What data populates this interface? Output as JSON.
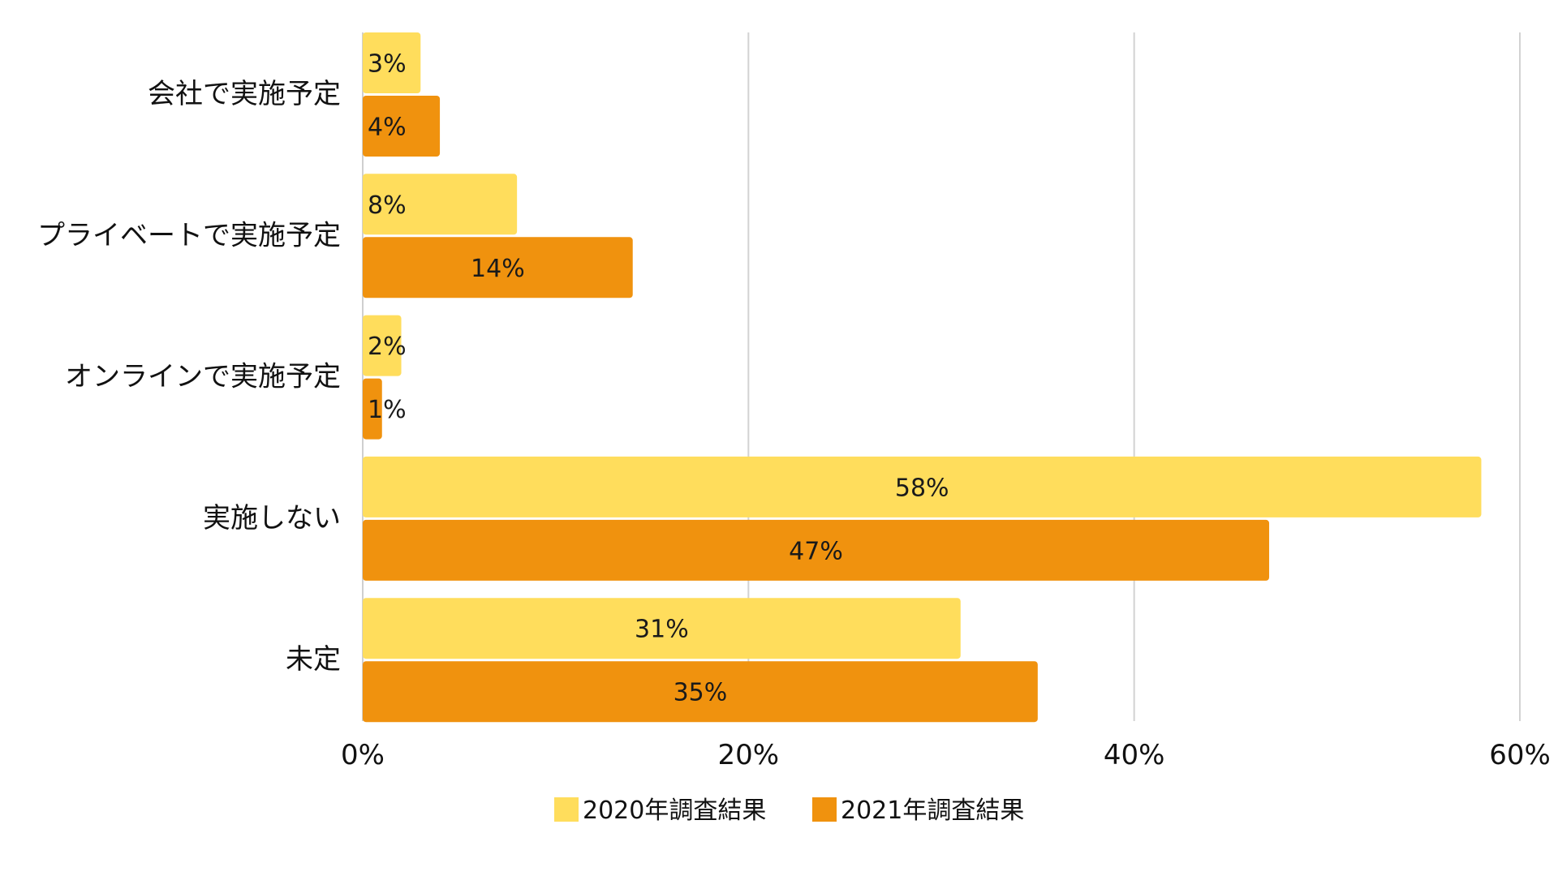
{
  "chart_data": {
    "type": "bar",
    "orientation": "horizontal",
    "categories": [
      "会社で実施予定",
      "プライベートで実施予定",
      "オンラインで実施予定",
      "実施しない",
      "未定"
    ],
    "series": [
      {
        "name": "2020年調査結果",
        "color": "#FFDD5C",
        "values": [
          3,
          8,
          2,
          58,
          31
        ],
        "labels": [
          "3%",
          "8%",
          "2%",
          "58%",
          "31%"
        ]
      },
      {
        "name": "2021年調査結果",
        "color": "#F0920E",
        "values": [
          4,
          14,
          1,
          47,
          35
        ],
        "labels": [
          "4%",
          "14%",
          "1%",
          "47%",
          "35%"
        ]
      }
    ],
    "xlim": [
      0,
      60
    ],
    "xticks": [
      0,
      20,
      40,
      60
    ],
    "xtick_labels": [
      "0%",
      "20%",
      "40%",
      "60%"
    ],
    "grid": "vertical",
    "legend": "bottom",
    "title": "",
    "xlabel": "",
    "ylabel": ""
  }
}
